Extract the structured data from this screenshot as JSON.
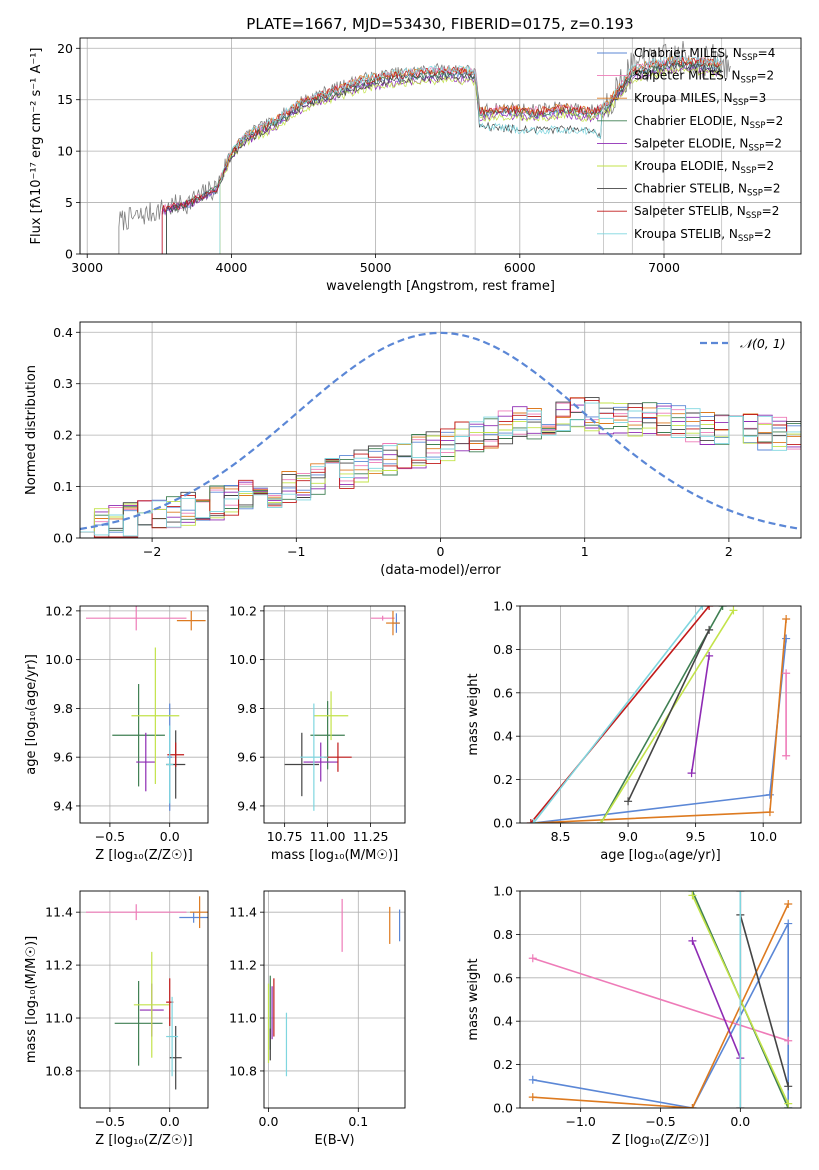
{
  "figure": {
    "title": "PLATE=1667, MJD=53430, FIBERID=0175, z=0.193"
  },
  "colors": {
    "grid": "#b0b0b0",
    "data_spectrum": "#808080",
    "gaussian": "#5b87d6"
  },
  "models": [
    {
      "name": "Chabrier MILES",
      "nssp": "4",
      "color": "#5b87d6"
    },
    {
      "name": "Salpeter MILES",
      "nssp": "2",
      "color": "#ee7bb8"
    },
    {
      "name": "Kroupa MILES",
      "nssp": "3",
      "color": "#dd7a20"
    },
    {
      "name": "Chabrier ELODIE",
      "nssp": "2",
      "color": "#3f7f52"
    },
    {
      "name": "Salpeter ELODIE",
      "nssp": "2",
      "color": "#8e2bb4"
    },
    {
      "name": "Kroupa ELODIE",
      "nssp": "2",
      "color": "#c3e34a"
    },
    {
      "name": "Chabrier STELIB",
      "nssp": "2",
      "color": "#444444"
    },
    {
      "name": "Salpeter STELIB",
      "nssp": "2",
      "color": "#c11a1a"
    },
    {
      "name": "Kroupa STELIB",
      "nssp": "2",
      "color": "#7fd6df"
    }
  ],
  "chart_data": [
    {
      "id": "spectrum",
      "type": "line",
      "xlabel": "wavelength [Angstrom, rest frame]",
      "ylabel": "Flux [fλ10⁻¹⁷ erg cm⁻² s⁻¹ A⁻¹]",
      "xlim": [
        2950,
        7950
      ],
      "ylim": [
        0,
        21
      ],
      "xticks": [
        3000,
        4000,
        5000,
        6000,
        7000
      ],
      "yticks": [
        0,
        5,
        10,
        15,
        20
      ],
      "legend": "top-right",
      "spectrum_shape": {
        "x": [
          3220,
          3400,
          3550,
          3700,
          3900,
          4000,
          4100,
          4300,
          4500,
          4700,
          4900,
          5100,
          5300,
          5500,
          5690,
          5720,
          5900,
          6100,
          6300,
          6500,
          6600,
          6780,
          6900,
          7100,
          7300,
          7450
        ],
        "y": [
          3.2,
          3.8,
          4.5,
          5.0,
          6.5,
          10.0,
          11.5,
          13.0,
          15.0,
          16.0,
          17.0,
          17.5,
          17.8,
          18.0,
          17.8,
          14.0,
          14.2,
          14.0,
          14.3,
          14.0,
          14.5,
          18.0,
          18.5,
          19.0,
          18.8,
          18.5
        ]
      },
      "low_branch": {
        "x": [
          5720,
          5900,
          6100,
          6300,
          6500,
          6550
        ],
        "y": [
          12.5,
          12.2,
          12.0,
          12.1,
          12.0,
          11.5
        ]
      }
    },
    {
      "id": "residual-hist",
      "type": "line",
      "xlabel": "(data-model)/error",
      "ylabel": "Normed distribution",
      "xlim": [
        -2.5,
        2.5
      ],
      "ylim": [
        0,
        0.42
      ],
      "xticks": [
        -2,
        -1,
        0,
        1,
        2
      ],
      "yticks": [
        0.0,
        0.1,
        0.2,
        0.3,
        0.4
      ],
      "legend": "top-right",
      "gaussian_label": "𝒩(0, 1)",
      "bins": 50,
      "trend": {
        "x": [
          -2.5,
          -2.0,
          -1.5,
          -1.0,
          -0.5,
          0.0,
          0.5,
          1.0,
          1.5,
          2.0,
          2.5
        ],
        "y": [
          0.02,
          0.04,
          0.07,
          0.1,
          0.14,
          0.18,
          0.22,
          0.24,
          0.23,
          0.21,
          0.2
        ]
      }
    },
    {
      "id": "age-vs-Z",
      "type": "scatter",
      "xlabel": "Z [log₁₀(Z/Z☉)]",
      "ylabel": "age  [log₁₀(age/yr)]",
      "xlim": [
        -0.75,
        0.32
      ],
      "ylim": [
        9.33,
        10.22
      ],
      "xticks": [
        -0.5,
        0.0
      ],
      "yticks": [
        9.4,
        9.6,
        9.8,
        10.0,
        10.2
      ],
      "points": [
        {
          "x": 0.0,
          "y": 9.6,
          "dx": 0.02,
          "dy": 0.22
        },
        {
          "x": -0.28,
          "y": 10.17,
          "dx": 0.42,
          "dy": 0.05
        },
        {
          "x": 0.18,
          "y": 10.16,
          "dx": 0.12,
          "dy": 0.04
        },
        {
          "x": -0.26,
          "y": 9.69,
          "dx": 0.22,
          "dy": 0.21
        },
        {
          "x": -0.2,
          "y": 9.58,
          "dx": 0.08,
          "dy": 0.12
        },
        {
          "x": -0.12,
          "y": 9.77,
          "dx": 0.2,
          "dy": 0.28
        },
        {
          "x": 0.05,
          "y": 9.57,
          "dx": 0.08,
          "dy": 0.14
        },
        {
          "x": 0.05,
          "y": 9.61,
          "dx": 0.07,
          "dy": 0.05
        },
        {
          "x": 0.0,
          "y": 9.57,
          "dx": 0.03,
          "dy": 0.16
        }
      ]
    },
    {
      "id": "age-vs-mass",
      "type": "scatter",
      "xlabel": "mass [log₁₀(M/M☉)]",
      "ylabel": "",
      "xlim": [
        10.63,
        11.45
      ],
      "ylim": [
        9.33,
        10.22
      ],
      "xticks": [
        10.75,
        11.0,
        11.25
      ],
      "yticks": [
        9.4,
        9.6,
        9.8,
        10.0,
        10.2
      ],
      "points": [
        {
          "x": 11.4,
          "y": 10.15,
          "dx": 0.02,
          "dy": 0.04
        },
        {
          "x": 11.32,
          "y": 10.17,
          "dx": 0.07,
          "dy": 0.01
        },
        {
          "x": 11.38,
          "y": 10.15,
          "dx": 0.04,
          "dy": 0.05
        },
        {
          "x": 11.0,
          "y": 9.69,
          "dx": 0.1,
          "dy": 0.14
        },
        {
          "x": 10.96,
          "y": 9.58,
          "dx": 0.1,
          "dy": 0.08
        },
        {
          "x": 11.02,
          "y": 9.77,
          "dx": 0.1,
          "dy": 0.1
        },
        {
          "x": 10.85,
          "y": 9.57,
          "dx": 0.1,
          "dy": 0.13
        },
        {
          "x": 11.06,
          "y": 9.6,
          "dx": 0.08,
          "dy": 0.06
        },
        {
          "x": 10.92,
          "y": 9.6,
          "dx": 0.08,
          "dy": 0.22
        }
      ]
    },
    {
      "id": "massweight-vs-age",
      "type": "line",
      "xlabel": "age  [log₁₀(age/yr)]",
      "ylabel": "mass weight",
      "xlim": [
        8.2,
        10.28
      ],
      "ylim": [
        0,
        1
      ],
      "xticks": [
        8.5,
        9.0,
        9.5,
        10.0
      ],
      "yticks": [
        0.0,
        0.2,
        0.4,
        0.6,
        0.8,
        1.0
      ],
      "series": [
        {
          "x": [
            8.3,
            10.05,
            10.17
          ],
          "y": [
            0.0,
            0.13,
            0.85
          ]
        },
        {
          "x": [
            10.17,
            10.17
          ],
          "y": [
            0.31,
            0.69
          ]
        },
        {
          "x": [
            8.3,
            10.05,
            10.17
          ],
          "y": [
            0.0,
            0.05,
            0.94
          ]
        },
        {
          "x": [
            8.8,
            9.7
          ],
          "y": [
            0.0,
            1.0
          ]
        },
        {
          "x": [
            9.47,
            9.6
          ],
          "y": [
            0.23,
            0.77
          ]
        },
        {
          "x": [
            8.8,
            9.78
          ],
          "y": [
            0.0,
            0.98
          ]
        },
        {
          "x": [
            9.0,
            9.6
          ],
          "y": [
            0.1,
            0.89
          ]
        },
        {
          "x": [
            8.28,
            9.6
          ],
          "y": [
            0.0,
            1.0
          ]
        },
        {
          "x": [
            8.3,
            9.55
          ],
          "y": [
            0.0,
            1.0
          ]
        }
      ]
    },
    {
      "id": "mass-vs-Z",
      "type": "scatter",
      "xlabel": "Z [log₁₀(Z/Z☉)]",
      "ylabel": "mass [log₁₀(M/M☉)]",
      "xlim": [
        -0.75,
        0.32
      ],
      "ylim": [
        10.66,
        11.48
      ],
      "xticks": [
        -0.5,
        0.0
      ],
      "yticks": [
        10.8,
        11.0,
        11.2,
        11.4
      ],
      "points": [
        {
          "x": 0.2,
          "y": 11.38,
          "dx": 0.12,
          "dy": 0.02
        },
        {
          "x": -0.28,
          "y": 11.4,
          "dx": 0.42,
          "dy": 0.03
        },
        {
          "x": 0.25,
          "y": 11.4,
          "dx": 0.08,
          "dy": 0.06
        },
        {
          "x": -0.26,
          "y": 10.98,
          "dx": 0.2,
          "dy": 0.16
        },
        {
          "x": -0.15,
          "y": 11.03,
          "dx": 0.1,
          "dy": 0.1
        },
        {
          "x": -0.15,
          "y": 11.05,
          "dx": 0.15,
          "dy": 0.2
        },
        {
          "x": 0.05,
          "y": 10.85,
          "dx": 0.05,
          "dy": 0.12
        },
        {
          "x": 0.0,
          "y": 11.06,
          "dx": 0.03,
          "dy": 0.09
        },
        {
          "x": 0.02,
          "y": 10.93,
          "dx": 0.05,
          "dy": 0.15
        }
      ]
    },
    {
      "id": "mass-vs-EBV",
      "type": "scatter",
      "xlabel": "E(B-V)",
      "ylabel": "",
      "xlim": [
        -0.005,
        0.152
      ],
      "ylim": [
        10.66,
        11.48
      ],
      "xticks": [
        0.0,
        0.1
      ],
      "yticks": [
        10.8,
        11.0,
        11.2,
        11.4
      ],
      "points": [
        {
          "x": 0.146,
          "y": 11.35,
          "dy": 0.06
        },
        {
          "x": 0.082,
          "y": 11.35,
          "dy": 0.1
        },
        {
          "x": 0.135,
          "y": 11.35,
          "dy": 0.07
        },
        {
          "x": 0.002,
          "y": 11.02,
          "dy": 0.14
        },
        {
          "x": 0.004,
          "y": 11.02,
          "dy": 0.1
        },
        {
          "x": 0.0,
          "y": 10.98,
          "dy": 0.15
        },
        {
          "x": 0.002,
          "y": 10.9,
          "dy": 0.06
        },
        {
          "x": 0.006,
          "y": 11.04,
          "dy": 0.11
        },
        {
          "x": 0.02,
          "y": 10.9,
          "dy": 0.12
        }
      ]
    },
    {
      "id": "massweight-vs-Z",
      "type": "line",
      "xlabel": "Z [log₁₀(Z/Z☉)]",
      "ylabel": "mass weight",
      "xlim": [
        -1.38,
        0.38
      ],
      "ylim": [
        0,
        1
      ],
      "xticks": [
        -1.0,
        -0.5,
        0.0
      ],
      "yticks": [
        0.0,
        0.2,
        0.4,
        0.6,
        0.8,
        1.0
      ],
      "series": [
        {
          "x": [
            -1.3,
            -0.3,
            0.3,
            0.3
          ],
          "y": [
            0.13,
            0.0,
            0.85,
            0.0
          ]
        },
        {
          "x": [
            -1.3,
            0.3
          ],
          "y": [
            0.69,
            0.31
          ]
        },
        {
          "x": [
            -1.3,
            -0.3,
            0.3
          ],
          "y": [
            0.05,
            0.0,
            0.94
          ]
        },
        {
          "x": [
            -0.3,
            0.3
          ],
          "y": [
            1.0,
            0.0
          ]
        },
        {
          "x": [
            -0.3,
            0.0
          ],
          "y": [
            0.77,
            0.23
          ]
        },
        {
          "x": [
            -0.3,
            0.3
          ],
          "y": [
            0.98,
            0.02
          ]
        },
        {
          "x": [
            0.0,
            0.3
          ],
          "y": [
            0.89,
            0.1
          ]
        },
        {
          "x": [
            0.0,
            0.0
          ],
          "y": [
            0.0,
            1.0
          ]
        },
        {
          "x": [
            0.0,
            0.0
          ],
          "y": [
            0.0,
            1.0
          ]
        }
      ]
    }
  ]
}
